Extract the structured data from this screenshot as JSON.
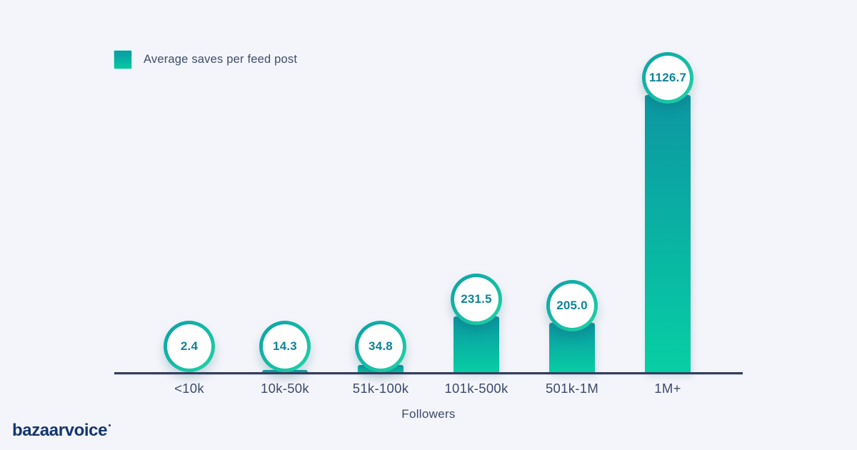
{
  "page": {
    "background": "#f4f5fb"
  },
  "legend": {
    "label": "Average saves per feed post",
    "swatch_color_top": "#0a9ba4",
    "swatch_color_bottom": "#06c9a2"
  },
  "chart_data": {
    "type": "bar",
    "title": "",
    "categories": [
      "<10k",
      "10k-50k",
      "51k-100k",
      "101k-500k",
      "501k-1M",
      "1M+"
    ],
    "series": [
      {
        "name": "Average saves per feed post",
        "values": [
          2.4,
          14.3,
          34.8,
          231.5,
          205.0,
          1126.7
        ]
      }
    ],
    "value_labels": [
      "2.4",
      "14.3",
      "34.8",
      "231.5",
      "205.0",
      "1126.7"
    ],
    "xlabel": "Followers",
    "ylabel": "",
    "ylim": [
      0,
      1126.7
    ],
    "grid": false,
    "legend_position": "top-left",
    "bar_color_top": "#0c96a2",
    "bar_color_bottom": "#07cfa4",
    "value_bubble_border": "#14bda6",
    "value_text_color": "#0e8399",
    "axis_color": "#333e5c",
    "tick_label_color": "#3b4a6b"
  },
  "branding": {
    "logo_text": "bazaarvoice"
  }
}
